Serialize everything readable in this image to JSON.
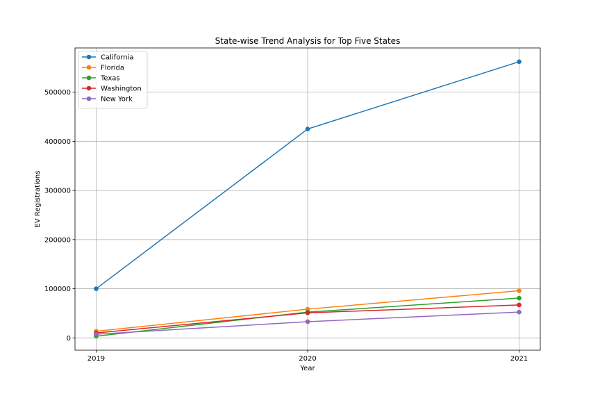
{
  "chart_data": {
    "type": "line",
    "title": "State-wise Trend Analysis for Top Five States",
    "xlabel": "Year",
    "ylabel": "EV Registrations",
    "x": [
      2019,
      2020,
      2021
    ],
    "x_tick_labels": [
      "2019",
      "2020",
      "2021"
    ],
    "xlim": [
      2018.9,
      2021.1
    ],
    "ylim": [
      -25000,
      590000
    ],
    "y_ticks": [
      0,
      100000,
      200000,
      300000,
      400000,
      500000
    ],
    "y_tick_labels": [
      "0",
      "100000",
      "200000",
      "300000",
      "400000",
      "500000"
    ],
    "grid": true,
    "legend_position": "top-left",
    "series": [
      {
        "name": "California",
        "color": "#1f77b4",
        "values": [
          100000,
          425000,
          562000
        ]
      },
      {
        "name": "Florida",
        "color": "#ff7f0e",
        "values": [
          13500,
          58500,
          96000
        ]
      },
      {
        "name": "Texas",
        "color": "#2ca02c",
        "values": [
          3500,
          52500,
          81000
        ]
      },
      {
        "name": "Washington",
        "color": "#d62728",
        "values": [
          10000,
          51000,
          67000
        ]
      },
      {
        "name": "New York",
        "color": "#9467bd",
        "values": [
          7500,
          33000,
          52500
        ]
      }
    ]
  }
}
